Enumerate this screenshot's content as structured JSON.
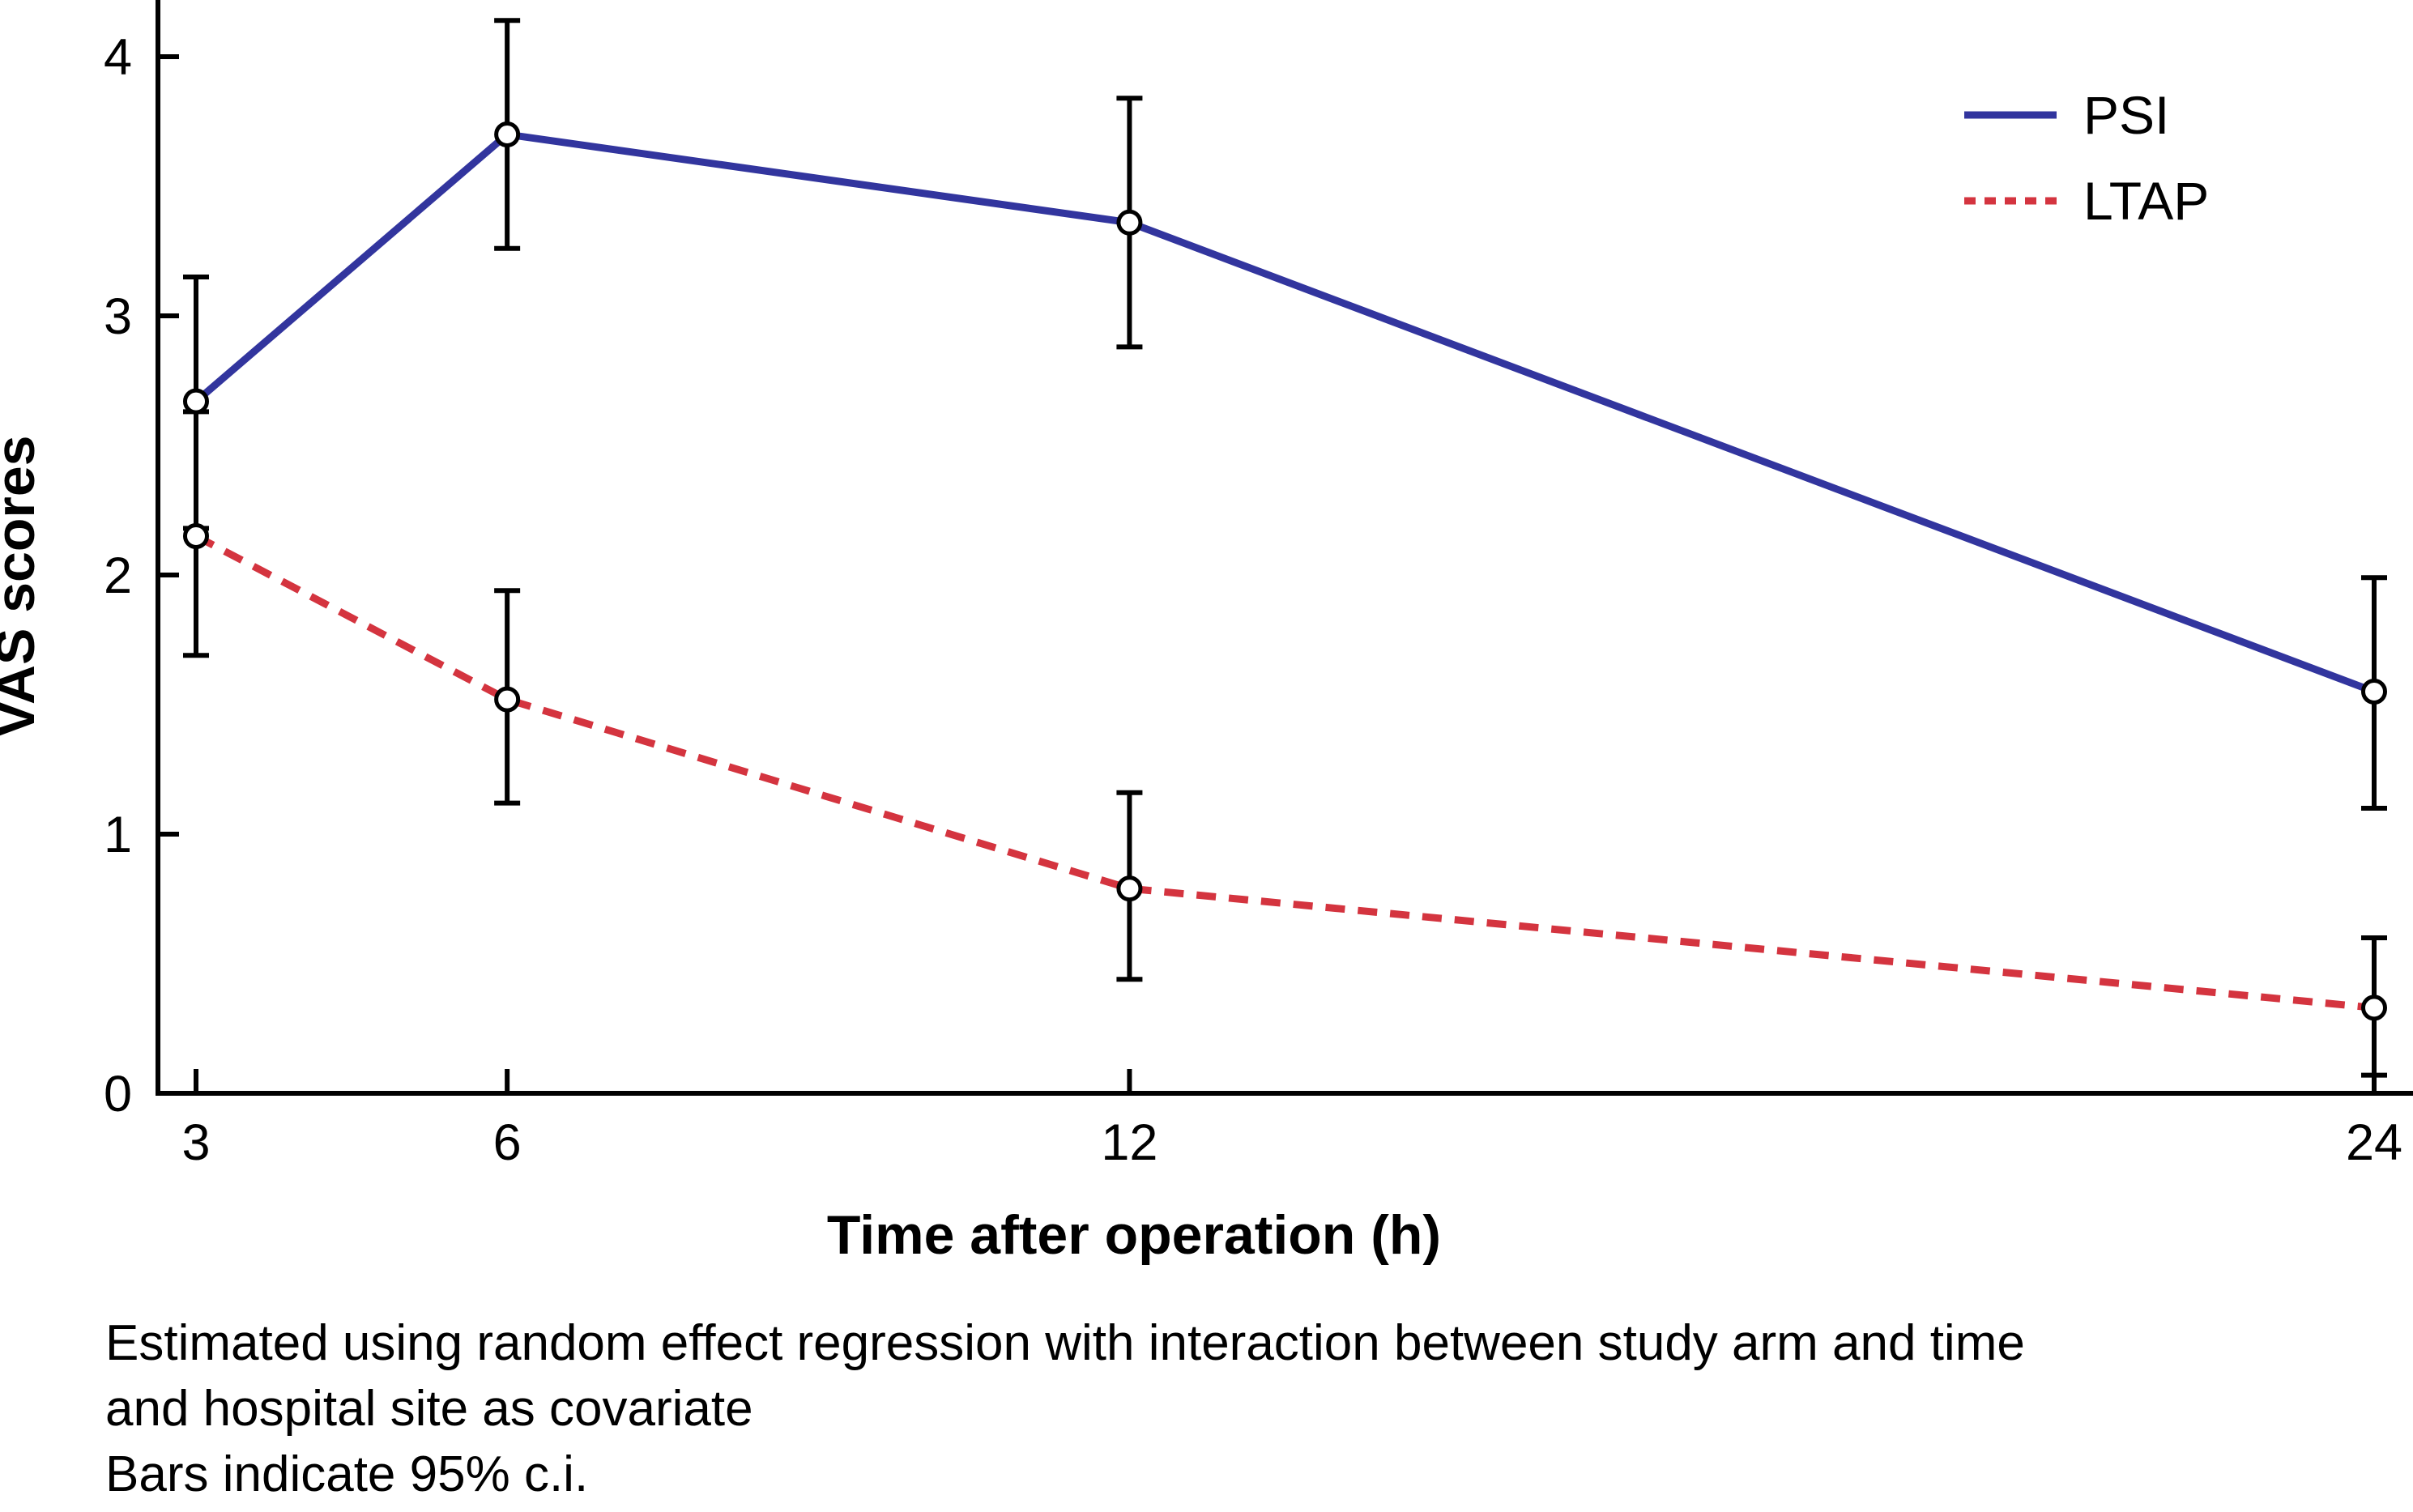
{
  "chart_data": {
    "type": "line",
    "title": "",
    "xlabel": "Time after operation (h)",
    "ylabel": "VAS scores",
    "x": [
      3,
      6,
      12,
      24
    ],
    "x_tick_labels": [
      "3",
      "6",
      "12",
      "24"
    ],
    "y_ticks": [
      0,
      1,
      2,
      3,
      4
    ],
    "ylim": [
      0,
      4.3
    ],
    "xlim": [
      2.6,
      24.4
    ],
    "x_scale": "linear",
    "grid": false,
    "legend_position": "top-right",
    "error_bar_meaning": "95% confidence interval",
    "marker": "open-circle",
    "series": [
      {
        "name": "PSI",
        "style": "solid",
        "color": "#32359e",
        "values": [
          2.67,
          3.7,
          3.36,
          1.55
        ],
        "ci_low": [
          2.18,
          3.26,
          2.88,
          1.1
        ],
        "ci_high": [
          3.15,
          4.14,
          3.84,
          1.99
        ]
      },
      {
        "name": "LTAP",
        "style": "dashed",
        "color": "#d4343f",
        "values": [
          2.15,
          1.52,
          0.79,
          0.33
        ],
        "ci_low": [
          1.69,
          1.12,
          0.44,
          0.07
        ],
        "ci_high": [
          2.63,
          1.94,
          1.16,
          0.6
        ]
      }
    ]
  },
  "footnotes": [
    "Estimated using random effect regression with interaction between study arm and time",
    "and hospital site as covariate",
    "Bars indicate 95% c.i."
  ]
}
